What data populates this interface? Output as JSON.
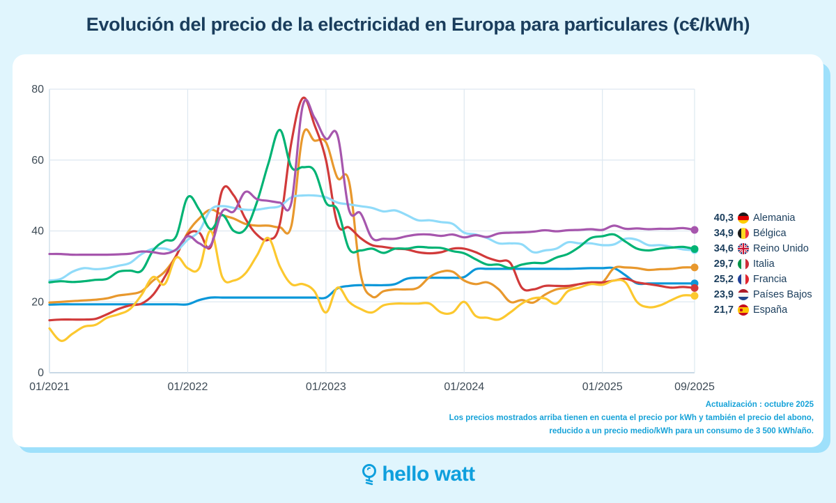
{
  "title": "Evolución del precio de la electricidad en Europa para particulares (c€/kWh)",
  "footnote": {
    "update": "Actualización : octubre 2025",
    "line1": "Los precios mostrados arriba tienen en cuenta el precio por kWh y también el precio del abono,",
    "line2": "reducido a un precio medio/kWh para un consumo de 3 500 kWh/año."
  },
  "brand": {
    "name": "hello watt",
    "icon": "lightbulb-icon",
    "color": "#0e9fdd"
  },
  "chart_data": {
    "type": "line",
    "title": "Evolución del precio de la electricidad en Europa para particulares (c€/kWh)",
    "xlabel": "",
    "ylabel": "c€/kWh",
    "ylim": [
      0,
      80
    ],
    "yticks": [
      "0",
      "20",
      "40",
      "60",
      "80"
    ],
    "xticks": [
      {
        "label": "01/2021",
        "index": 0
      },
      {
        "label": "01/2022",
        "index": 12
      },
      {
        "label": "01/2023",
        "index": 24
      },
      {
        "label": "01/2024",
        "index": 36
      },
      {
        "label": "01/2025",
        "index": 48
      },
      {
        "label": "09/2025",
        "index": 56
      }
    ],
    "x_start": "01/2021",
    "x_end": "09/2025",
    "x_unit": "month",
    "grid": true,
    "legend_position": "right",
    "series": [
      {
        "name": "Alemania",
        "final_label": "40,3",
        "color": "#a656ad",
        "flag": "de",
        "values": [
          33.5,
          33.5,
          33.3,
          33.3,
          33.3,
          33.3,
          33.4,
          33.6,
          34.2,
          34.0,
          33.6,
          34.8,
          38.5,
          36.5,
          36,
          45.5,
          45.5,
          51,
          49,
          48.5,
          48,
          48,
          75.5,
          72,
          66,
          67,
          46,
          45,
          38,
          37.8,
          37.8,
          38.5,
          39,
          39,
          38.6,
          39,
          38.2,
          38.8,
          38.3,
          39.3,
          39.5,
          39.6,
          39.8,
          40.2,
          39.9,
          40.2,
          40.3,
          40.5,
          40.3,
          41.5,
          40.6,
          40.7,
          40.5,
          40.6,
          40.6,
          40.8,
          40.3
        ]
      },
      {
        "name": "Bélgica",
        "final_label": "34,9",
        "color": "#00b374",
        "flag": "be",
        "values": [
          25.5,
          25.8,
          25.6,
          25.8,
          26.2,
          26.5,
          28.5,
          28.8,
          28.8,
          34.5,
          37.2,
          38.5,
          49.5,
          46,
          40.5,
          44.5,
          40,
          40.5,
          48,
          59,
          68.5,
          58,
          58,
          57,
          48,
          46,
          35,
          34.5,
          35,
          33.8,
          35,
          35,
          35.5,
          35.3,
          35.2,
          34.3,
          33.7,
          32,
          30.5,
          30.5,
          29.5,
          30.5,
          31,
          31,
          32.5,
          33.5,
          35.5,
          38,
          38.5,
          39,
          37,
          35,
          34.5,
          35,
          35.3,
          35.5,
          34.9
        ]
      },
      {
        "name": "Reino Unido",
        "final_label": "34,6",
        "color": "#90dbf9",
        "flag": "gb",
        "values": [
          26,
          26.5,
          28.5,
          29.5,
          29.2,
          29.5,
          30.2,
          31,
          33.5,
          35,
          35,
          34.5,
          37.5,
          40,
          46,
          47,
          46.5,
          46,
          46,
          46.5,
          47,
          49.5,
          50,
          50,
          49.5,
          48,
          47.5,
          47,
          46.5,
          45.5,
          45.8,
          44.5,
          43,
          43,
          42.5,
          42,
          39.5,
          39,
          38,
          36.5,
          36.5,
          36.2,
          34,
          34.5,
          35,
          36.8,
          36.5,
          36.5,
          36,
          36.2,
          37.8,
          37.5,
          36,
          36,
          35.5,
          34.8,
          34.6
        ]
      },
      {
        "name": "Italia",
        "final_label": "29,7",
        "color": "#e8982d",
        "flag": "it",
        "values": [
          19.8,
          20,
          20.2,
          20.4,
          20.6,
          21,
          21.8,
          22.2,
          23,
          26,
          28.5,
          33,
          39.5,
          43.5,
          46,
          44.5,
          43.5,
          42,
          41.5,
          41.5,
          41,
          41.5,
          67,
          65.5,
          65,
          55,
          54,
          28,
          21.5,
          23,
          23.5,
          23.5,
          24,
          27,
          28.5,
          28.5,
          26,
          25,
          25.5,
          23.5,
          20,
          20.5,
          19.8,
          22,
          23.5,
          24,
          25,
          25.5,
          25.5,
          29.5,
          29.7,
          29.5,
          29,
          29.2,
          29.3,
          29.7,
          29.7
        ]
      },
      {
        "name": "Francia",
        "final_label": "25,2",
        "color": "#0a97d9",
        "flag": "fr",
        "values": [
          19.2,
          19.3,
          19.3,
          19.3,
          19.3,
          19.3,
          19.3,
          19.3,
          19.3,
          19.3,
          19.3,
          19.3,
          19.3,
          20.5,
          21.2,
          21.2,
          21.2,
          21.2,
          21.2,
          21.2,
          21.2,
          21.2,
          21.2,
          21.2,
          21.2,
          23.8,
          24.5,
          24.7,
          24.7,
          24.7,
          25,
          26.5,
          26.8,
          26.8,
          26.8,
          26.8,
          27,
          29.2,
          29.3,
          29.3,
          29.3,
          29.3,
          29.3,
          29.3,
          29.3,
          29.3,
          29.4,
          29.5,
          29.5,
          29.5,
          27.5,
          25.2,
          25.2,
          25.2,
          25.2,
          25.2,
          25.2
        ]
      },
      {
        "name": "Países Bajos",
        "final_label": "23,9",
        "color": "#d13a3a",
        "flag": "nl",
        "values": [
          14.8,
          15,
          15,
          15,
          15.2,
          16.5,
          18,
          19,
          19.5,
          22,
          27,
          33,
          39,
          39.5,
          35.5,
          51.5,
          50,
          43.5,
          39,
          37.5,
          42,
          65,
          77.5,
          70,
          60,
          42,
          41,
          38,
          36,
          35.5,
          35,
          34.8,
          34,
          33.7,
          34,
          35,
          35,
          34,
          32.5,
          31.5,
          31,
          24,
          23.5,
          24.5,
          24.5,
          24.5,
          25,
          25.5,
          25.5,
          26,
          26.5,
          25.5,
          25,
          24.5,
          24,
          24.2,
          23.9
        ]
      },
      {
        "name": "España",
        "final_label": "21,7",
        "color": "#fcc82f",
        "flag": "es",
        "values": [
          12.5,
          9,
          11,
          13,
          13.5,
          15.5,
          16.5,
          18,
          22,
          27,
          25,
          32.5,
          29.5,
          29.5,
          40,
          27,
          26,
          28,
          33,
          38,
          30,
          25,
          25,
          23,
          17,
          24,
          20,
          18,
          17,
          19,
          19.5,
          19.5,
          19.5,
          19.5,
          17,
          17,
          20,
          16,
          15.5,
          15,
          17,
          19.5,
          21,
          21,
          19.5,
          23,
          24,
          25,
          24.8,
          26,
          25.5,
          20,
          18.5,
          19,
          20.5,
          21.8,
          21.7
        ]
      }
    ]
  }
}
